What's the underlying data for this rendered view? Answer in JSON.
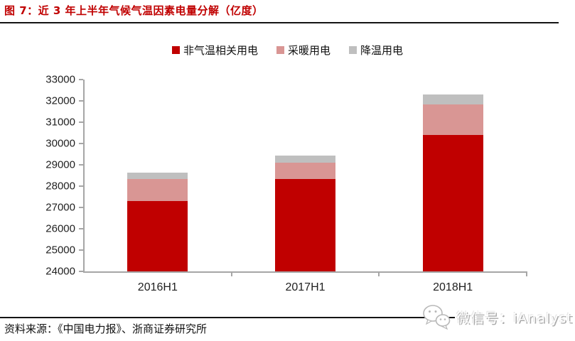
{
  "header": {
    "title": "图 7：近 3 年上半年气候气温因素电量分解（亿度）"
  },
  "chart_data": {
    "type": "bar",
    "stacked": true,
    "title": "图 7：近 3 年上半年气候气温因素电量分解（亿度）",
    "categories": [
      "2016H1",
      "2017H1",
      "2018H1"
    ],
    "series": [
      {
        "name": "非气温相关用电",
        "color": "#C00000",
        "values": [
          27300,
          28350,
          30400
        ]
      },
      {
        "name": "采暖用电",
        "color": "#D99694",
        "values": [
          1050,
          750,
          1450
        ]
      },
      {
        "name": "降温用电",
        "color": "#BFBFBF",
        "values": [
          300,
          350,
          450
        ]
      }
    ],
    "totals": [
      28650,
      29450,
      32300
    ],
    "ylim": [
      24000,
      33000
    ],
    "yticks": [
      24000,
      25000,
      26000,
      27000,
      28000,
      29000,
      30000,
      31000,
      32000,
      33000
    ],
    "grid": false,
    "legend_position": "top",
    "axis_color": "#A6A6A6"
  },
  "footer": {
    "source": "资料来源：《中国电力报》、浙商证券研究所"
  },
  "watermark": {
    "icon": "wechat-icon",
    "label": "微信号：iAnalyst"
  },
  "colors": {
    "title_red": "#C00000",
    "bar_red": "#C00000",
    "bar_pink": "#D99694",
    "bar_gray": "#BFBFBF",
    "rule_black": "#151515",
    "watermark_gray": "#ababab"
  }
}
